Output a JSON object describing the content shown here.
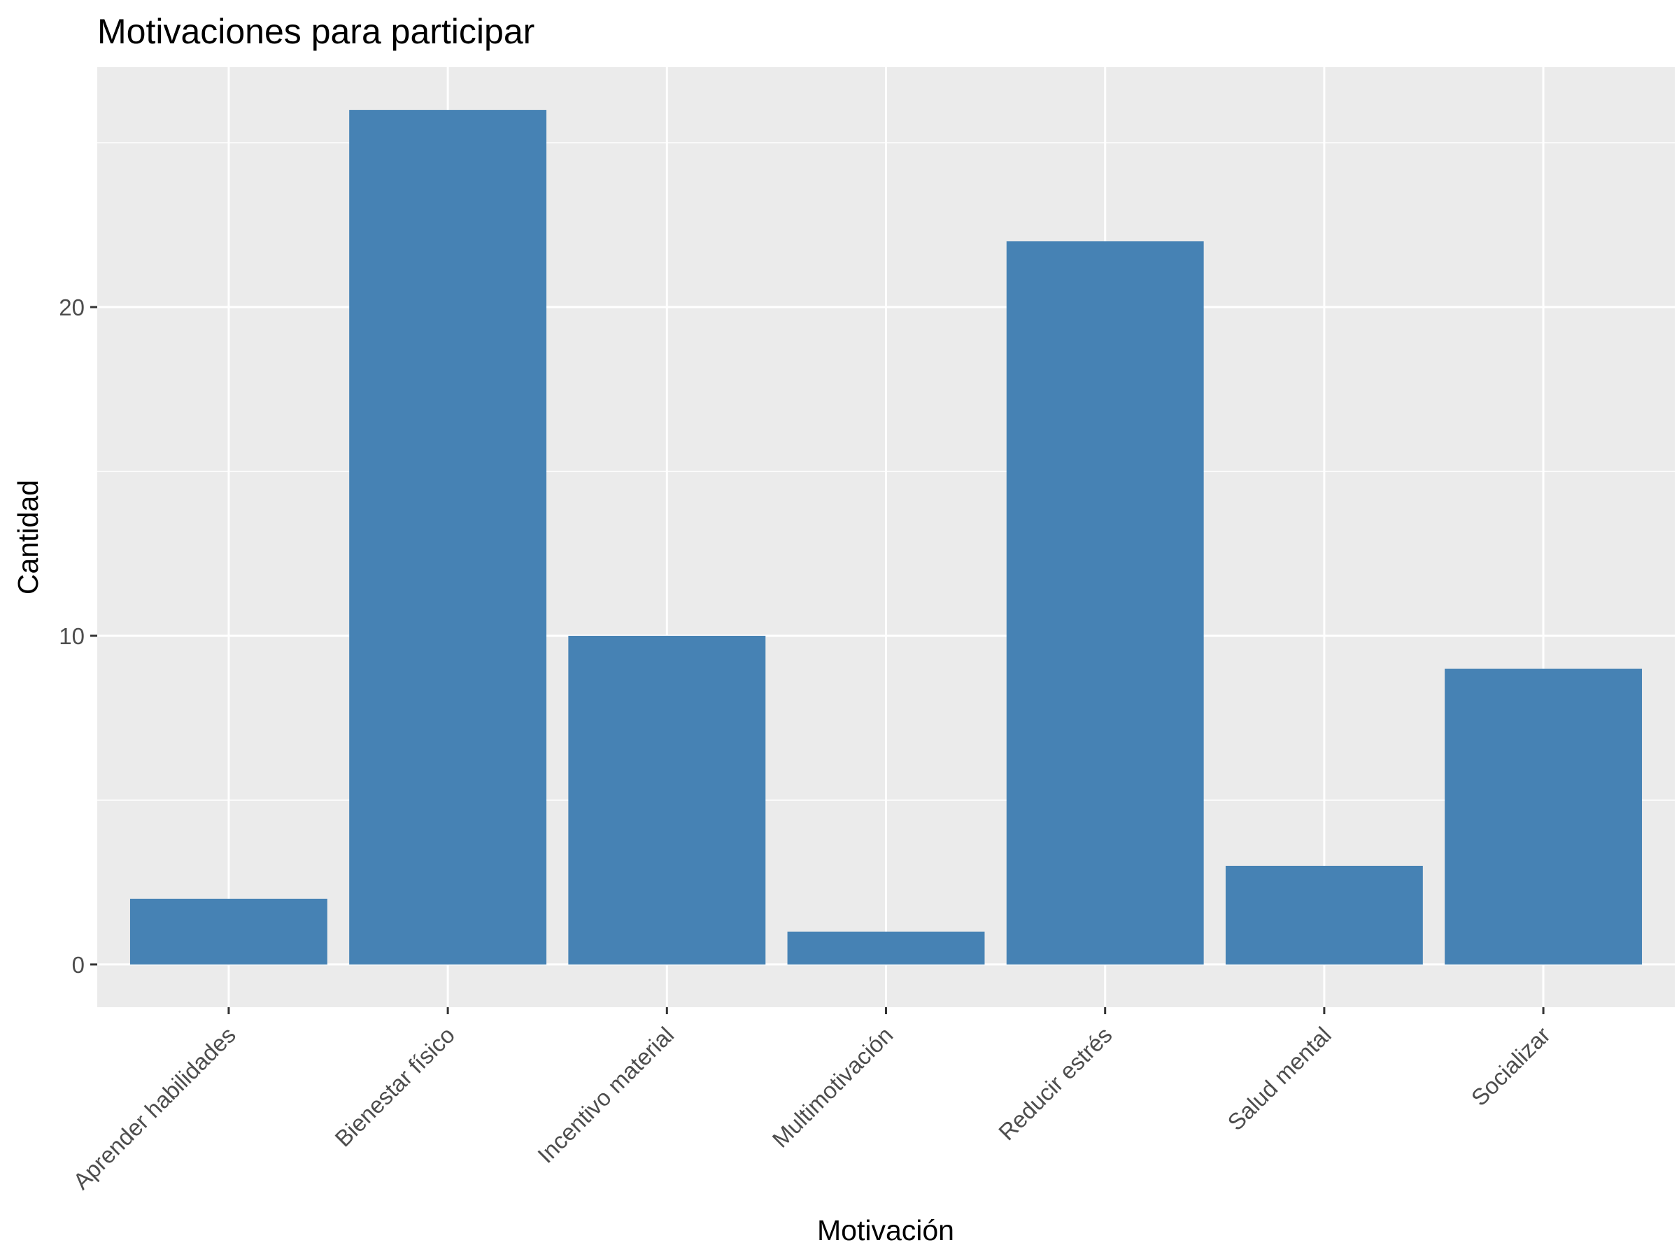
{
  "chart_data": {
    "type": "bar",
    "title": "Motivaciones para participar",
    "xlabel": "Motivación",
    "ylabel": "Cantidad",
    "categories": [
      "Aprender habilidades",
      "Bienestar físico",
      "Incentivo material",
      "Multimotivación",
      "Reducir estrés",
      "Salud mental",
      "Socializar"
    ],
    "values": [
      2,
      26,
      10,
      1,
      22,
      3,
      9
    ],
    "ylim": [
      -1.3,
      27.3
    ],
    "yticks": [
      "0",
      "10",
      "20"
    ],
    "grid": true,
    "bar_color": "#4682b4",
    "panel_color": "#ebebeb",
    "grid_color": "#ffffff"
  }
}
